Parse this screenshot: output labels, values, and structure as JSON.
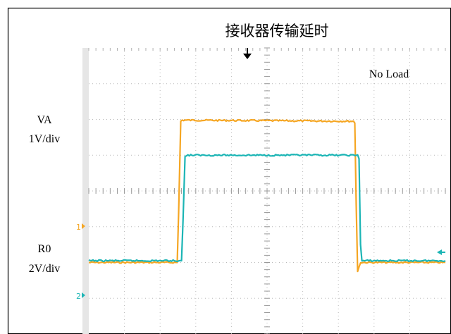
{
  "chart_data": {
    "type": "line",
    "title": "接收器传输延时",
    "annotation": "No Load",
    "channel_labels": [
      {
        "name": "VA",
        "scale": "1V/div"
      },
      {
        "name": "R0",
        "scale": "2V/div"
      }
    ],
    "marker_labels": [
      "1",
      "2"
    ],
    "grid": true,
    "xlim": [
      0,
      10
    ],
    "ylim": [
      -4,
      4
    ],
    "series": [
      {
        "name": "VA",
        "color": "#F5A623",
        "x": [
          0,
          2.48,
          2.52,
          2.58,
          2.62,
          7.42,
          7.46,
          7.5,
          7.54,
          7.62,
          10
        ],
        "values": [
          -2.0,
          -2.0,
          -0.6,
          1.95,
          1.98,
          1.95,
          1.9,
          -0.4,
          -2.25,
          -2.0,
          -2.0
        ]
      },
      {
        "name": "R0",
        "color": "#1CB5B5",
        "x": [
          0,
          2.6,
          2.64,
          2.7,
          2.74,
          7.54,
          7.58,
          7.62,
          7.66,
          10
        ],
        "values": [
          -1.95,
          -1.95,
          -0.9,
          0.95,
          1.0,
          1.0,
          0.9,
          -1.5,
          -1.95,
          -1.95
        ]
      }
    ]
  }
}
